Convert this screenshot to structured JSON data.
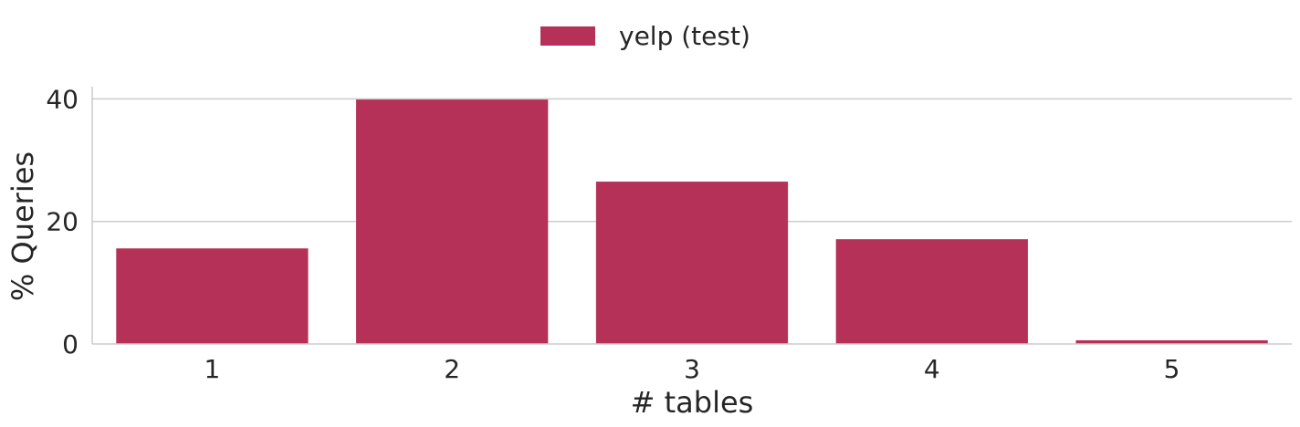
{
  "chart_data": {
    "type": "bar",
    "categories": [
      "1",
      "2",
      "3",
      "4",
      "5"
    ],
    "series": [
      {
        "name": "yelp (test)",
        "values": [
          15.6,
          39.9,
          26.5,
          17.1,
          0.6
        ],
        "color": "#b53158"
      }
    ],
    "xlabel": "# tables",
    "ylabel": "% Queries",
    "ylim": [
      0,
      42
    ],
    "yticks": [
      0,
      20,
      40
    ],
    "grid": "horizontal",
    "legend_position": "top-center"
  }
}
